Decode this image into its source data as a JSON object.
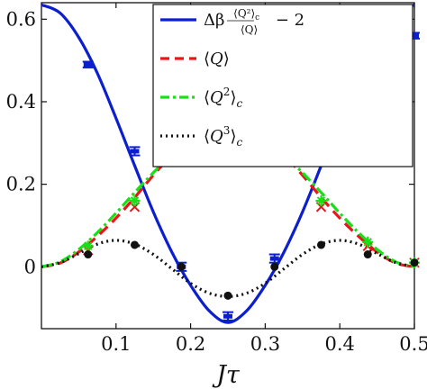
{
  "chart_data": {
    "type": "line",
    "xlabel": "Jτ",
    "ylabel": "",
    "xlim": [
      0,
      0.5
    ],
    "ylim": [
      -0.15,
      0.64
    ],
    "x_ticks": [
      0.1,
      0.2,
      0.3,
      0.4,
      0.5
    ],
    "x_tick_labels": [
      "0.1",
      "0.2",
      "0.3",
      "0.4",
      "0.5"
    ],
    "y_ticks": [
      0,
      0.2,
      0.4,
      0.6
    ],
    "y_tick_labels": [
      "0",
      "0.2",
      "0.4",
      "0.6"
    ],
    "grid": false,
    "legend_position": "top-right",
    "series": [
      {
        "name": "Δβ ⟨Q²⟩c/⟨Q⟩ − 2",
        "style": "solid",
        "color": "#0b1fcf",
        "x": [
          0,
          0.025,
          0.05,
          0.075,
          0.1,
          0.125,
          0.15,
          0.175,
          0.2,
          0.225,
          0.25,
          0.275,
          0.3,
          0.325,
          0.35,
          0.375,
          0.4,
          0.425,
          0.45,
          0.475,
          0.5
        ],
        "y": [
          0.635,
          0.615,
          0.556,
          0.469,
          0.36,
          0.245,
          0.133,
          0.035,
          -0.045,
          -0.107,
          -0.135,
          -0.107,
          -0.045,
          0.035,
          0.133,
          0.245,
          0.36,
          0.469,
          0.556,
          0.615,
          0.635
        ],
        "points": {
          "marker": "errorbar",
          "x": [
            0.0625,
            0.125,
            0.1875,
            0.25,
            0.3125,
            0.375,
            0.4375,
            0.5
          ],
          "y": [
            0.49,
            0.28,
            0.0,
            -0.12,
            0.02,
            0.27,
            0.48,
            0.56
          ],
          "err": [
            0.007,
            0.01,
            0.01,
            0.01,
            0.01,
            0.01,
            0.007,
            0.007
          ]
        }
      },
      {
        "name": "⟨Q⟩",
        "style": "dashed",
        "color": "#e8151b",
        "x": [
          0,
          0.025,
          0.05,
          0.075,
          0.1,
          0.125,
          0.15,
          0.175,
          0.2,
          0.225,
          0.25,
          0.275,
          0.3,
          0.325,
          0.35,
          0.375,
          0.4,
          0.425,
          0.45,
          0.475,
          0.5
        ],
        "y": [
          0.0,
          0.009,
          0.036,
          0.074,
          0.118,
          0.168,
          0.222,
          0.272,
          0.318,
          0.355,
          0.375,
          0.355,
          0.318,
          0.272,
          0.222,
          0.168,
          0.118,
          0.074,
          0.036,
          0.009,
          0.0
        ],
        "points": {
          "marker": "x",
          "x": [
            0.0625,
            0.125,
            0.1875,
            0.25,
            0.3125,
            0.375,
            0.4375,
            0.5
          ],
          "y": [
            0.04,
            0.145,
            0.27,
            0.35,
            0.27,
            0.145,
            0.05,
            0.01
          ]
        }
      },
      {
        "name": "⟨Q²⟩c",
        "style": "dashdot",
        "color": "#16e016",
        "x": [
          0,
          0.025,
          0.05,
          0.075,
          0.1,
          0.125,
          0.15,
          0.175,
          0.2,
          0.225,
          0.25,
          0.275,
          0.3,
          0.325,
          0.35,
          0.375,
          0.4,
          0.425,
          0.45,
          0.475,
          0.5
        ],
        "y": [
          0.0,
          0.012,
          0.042,
          0.083,
          0.13,
          0.18,
          0.228,
          0.273,
          0.31,
          0.336,
          0.345,
          0.336,
          0.31,
          0.273,
          0.228,
          0.18,
          0.13,
          0.083,
          0.042,
          0.012,
          0.0
        ],
        "points": {
          "marker": "star",
          "x": [
            0.0625,
            0.125,
            0.1875,
            0.25,
            0.3125,
            0.375,
            0.4375,
            0.5
          ],
          "y": [
            0.05,
            0.16,
            0.27,
            0.31,
            0.27,
            0.16,
            0.06,
            0.01
          ]
        }
      },
      {
        "name": "⟨Q³⟩c",
        "style": "dotted",
        "color": "#111111",
        "x": [
          0,
          0.025,
          0.05,
          0.075,
          0.1,
          0.125,
          0.15,
          0.175,
          0.2,
          0.225,
          0.25,
          0.275,
          0.3,
          0.325,
          0.35,
          0.375,
          0.4,
          0.425,
          0.45,
          0.475,
          0.5
        ],
        "y": [
          0.0,
          0.01,
          0.032,
          0.055,
          0.064,
          0.055,
          0.03,
          -0.005,
          -0.04,
          -0.064,
          -0.072,
          -0.064,
          -0.04,
          -0.005,
          0.03,
          0.055,
          0.064,
          0.055,
          0.032,
          0.01,
          0.0
        ],
        "points": {
          "marker": "dot",
          "x": [
            0.0625,
            0.125,
            0.1875,
            0.25,
            0.3125,
            0.375,
            0.4375,
            0.5
          ],
          "y": [
            0.03,
            0.053,
            0.0,
            -0.07,
            0.0,
            0.053,
            0.03,
            0.01
          ]
        }
      }
    ]
  }
}
